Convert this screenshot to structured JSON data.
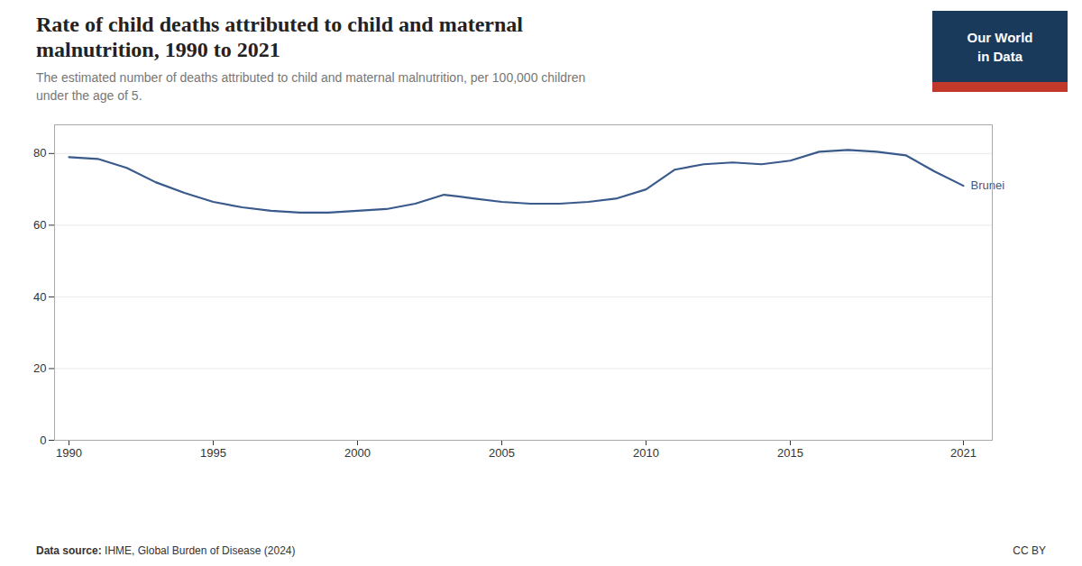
{
  "chart_data": {
    "type": "line",
    "title": "Rate of child deaths attributed to child and maternal\nmalnutrition, 1990 to 2021",
    "subtitle": "The estimated number of deaths attributed to child and maternal malnutrition, per 100,000 children\nunder the age of 5.",
    "x": [
      1990,
      1991,
      1992,
      1993,
      1994,
      1995,
      1996,
      1997,
      1998,
      1999,
      2000,
      2001,
      2002,
      2003,
      2004,
      2005,
      2006,
      2007,
      2008,
      2009,
      2010,
      2011,
      2012,
      2013,
      2014,
      2015,
      2016,
      2017,
      2018,
      2019,
      2020,
      2021
    ],
    "series": [
      {
        "name": "Brunei",
        "color": "#3a5a8c",
        "values": [
          79.0,
          78.5,
          76.0,
          72.0,
          69.0,
          66.5,
          65.0,
          64.0,
          63.5,
          63.5,
          64.0,
          64.5,
          66.0,
          68.5,
          67.5,
          66.5,
          66.0,
          66.0,
          66.5,
          67.5,
          70.0,
          75.5,
          77.0,
          77.5,
          77.0,
          78.0,
          80.5,
          81.0,
          80.5,
          79.5,
          75.0,
          71.0
        ]
      }
    ],
    "xlim": [
      1989.5,
      2022
    ],
    "xticks": [
      1990,
      1995,
      2000,
      2005,
      2010,
      2015,
      2021
    ],
    "ylim": [
      0,
      88
    ],
    "yticks": [
      0,
      20,
      40,
      60,
      80
    ],
    "grid": true,
    "source_label": "Data source:",
    "source": "IHME, Global Burden of Disease (2024)",
    "license": "CC BY",
    "logo": [
      "Our World",
      "in Data"
    ]
  }
}
